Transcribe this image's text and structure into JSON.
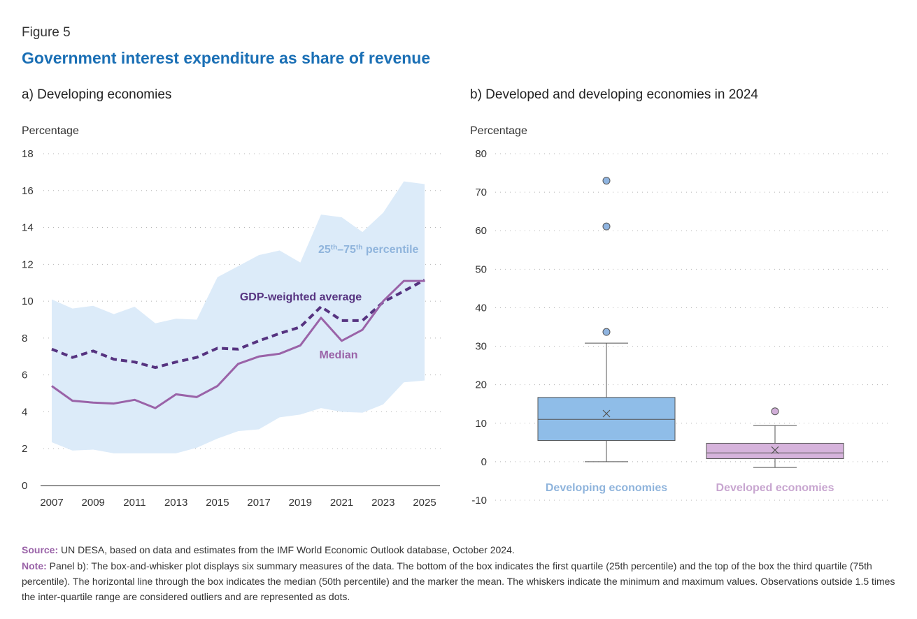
{
  "figure_label": "Figure 5",
  "figure_title": "Government interest expenditure as share of revenue",
  "colors": {
    "title_blue": "#1a6fb5",
    "band": "#dcebf9",
    "gdp_weighted": "#563380",
    "median": "#9a63a8",
    "band_label": "#8fb4dc",
    "box_developing": "#8fbde8",
    "box_developed": "#d6b3dc",
    "label_developing": "#8fb4dc",
    "label_developed": "#c8a6d0"
  },
  "chart_data": [
    {
      "type": "line",
      "panel_title": "a) Developing economies",
      "ylabel": "Percentage",
      "ylim": [
        0,
        18
      ],
      "yticks": [
        "0",
        "2",
        "4",
        "6",
        "8",
        "10",
        "12",
        "14",
        "16",
        "18"
      ],
      "xtick_labels": [
        "2007",
        "2009",
        "2011",
        "2013",
        "2015",
        "2017",
        "2019",
        "2021",
        "2023",
        "2025"
      ],
      "x": [
        2007,
        2008,
        2009,
        2010,
        2011,
        2012,
        2013,
        2014,
        2015,
        2016,
        2017,
        2018,
        2019,
        2020,
        2021,
        2022,
        2023,
        2024,
        2025
      ],
      "band": {
        "name": "25th–75th percentile",
        "label_base": "25",
        "label_sup1": "th",
        "label_mid": "–75",
        "label_sup2": "th",
        "label_tail": " percentile",
        "lower": [
          2.35,
          1.9,
          1.95,
          1.75,
          1.75,
          1.75,
          1.75,
          2.05,
          2.55,
          2.95,
          3.05,
          3.7,
          3.85,
          4.2,
          4.0,
          3.95,
          4.4,
          5.6,
          5.7
        ],
        "upper": [
          10.1,
          9.6,
          9.75,
          9.3,
          9.7,
          8.8,
          9.05,
          9.0,
          11.3,
          11.9,
          12.5,
          12.75,
          12.1,
          14.7,
          14.55,
          13.75,
          14.8,
          16.5,
          16.35
        ]
      },
      "series": [
        {
          "name": "GDP-weighted average",
          "style": "dashed",
          "values": [
            7.4,
            6.95,
            7.3,
            6.85,
            6.7,
            6.4,
            6.7,
            6.95,
            7.45,
            7.4,
            7.85,
            8.25,
            8.6,
            9.7,
            8.95,
            8.95,
            9.95,
            10.55,
            11.15
          ]
        },
        {
          "name": "Median",
          "style": "solid",
          "values": [
            5.4,
            4.6,
            4.5,
            4.45,
            4.65,
            4.2,
            4.95,
            4.8,
            5.4,
            6.6,
            7.0,
            7.15,
            7.6,
            9.1,
            7.85,
            8.45,
            10.0,
            11.1,
            11.1
          ]
        }
      ]
    },
    {
      "type": "boxplot",
      "panel_title": "b) Developed and developing economies in 2024",
      "ylabel": "Percentage",
      "ylim": [
        -10,
        80
      ],
      "yticks": [
        "-10",
        "0",
        "10",
        "20",
        "30",
        "40",
        "50",
        "60",
        "70",
        "80"
      ],
      "groups": [
        {
          "name": "Developing economies",
          "min": 0,
          "q1": 5.5,
          "median": 11,
          "mean": 12.5,
          "q3": 16.7,
          "max": 30.8,
          "outliers": [
            33.7,
            61.1,
            73
          ]
        },
        {
          "name": "Developed economies",
          "min": -1.5,
          "q1": 0.8,
          "median": 2.3,
          "mean": 3,
          "q3": 4.8,
          "max": 9.4,
          "outliers": [
            13.1
          ]
        }
      ]
    }
  ],
  "footer": {
    "source_label": "Source:",
    "source_text": " UN DESA, based on data and estimates from the IMF World Economic Outlook database, October 2024.",
    "note_label": "Note:",
    "note_text": " Panel b): The box-and-whisker plot displays six summary measures of the data. The bottom of the box indicates the first quartile (25th percentile) and the top of the box the third quartile (75th percentile). The horizontal line through the box indicates the median (50th percentile) and the marker the mean. The whiskers indicate the minimum and maximum values. Observations outside 1.5 times the inter-quartile range are considered outliers and are represented as dots."
  }
}
